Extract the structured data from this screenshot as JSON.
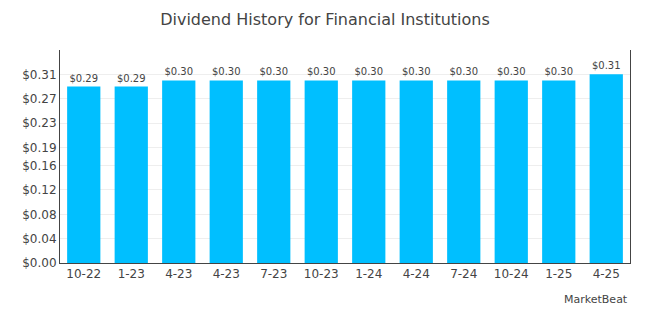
{
  "chart_data": {
    "type": "bar",
    "title": "Dividend History for Financial Institutions",
    "categories": [
      "10-22",
      "1-23",
      "4-23",
      "4-23",
      "7-23",
      "10-23",
      "1-24",
      "4-24",
      "7-24",
      "10-24",
      "1-25",
      "4-25"
    ],
    "values": [
      0.29,
      0.29,
      0.3,
      0.3,
      0.3,
      0.3,
      0.3,
      0.3,
      0.3,
      0.3,
      0.3,
      0.31
    ],
    "value_labels": [
      "$0.29",
      "$0.29",
      "$0.30",
      "$0.30",
      "$0.30",
      "$0.30",
      "$0.30",
      "$0.30",
      "$0.30",
      "$0.30",
      "$0.30",
      "$0.31"
    ],
    "color": "#00bfff",
    "ylim": [
      0,
      0.35
    ],
    "yticks": [
      {
        "value": 0.0,
        "label": "$0.00"
      },
      {
        "value": 0.04,
        "label": "$0.04"
      },
      {
        "value": 0.08,
        "label": "$0.08"
      },
      {
        "value": 0.12,
        "label": "$0.12"
      },
      {
        "value": 0.16,
        "label": "$0.16"
      },
      {
        "value": 0.19,
        "label": "$0.19"
      },
      {
        "value": 0.23,
        "label": "$0.23"
      },
      {
        "value": 0.27,
        "label": "$0.27"
      },
      {
        "value": 0.31,
        "label": "$0.31"
      }
    ],
    "grid": true,
    "data_labels": true,
    "annotations": [
      "MarketBeat"
    ]
  }
}
